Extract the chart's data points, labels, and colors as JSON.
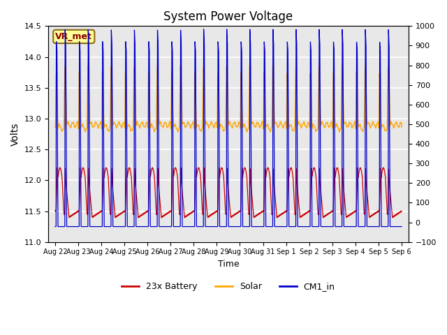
{
  "title": "System Power Voltage",
  "xlabel": "Time",
  "ylabel_left": "Volts",
  "ylim_left": [
    11.0,
    14.5
  ],
  "ylim_right": [
    -100,
    1000
  ],
  "yticks_left": [
    11.0,
    11.5,
    12.0,
    12.5,
    13.0,
    13.5,
    14.0,
    14.5
  ],
  "yticks_right": [
    -100,
    0,
    100,
    200,
    300,
    400,
    500,
    600,
    700,
    800,
    900,
    1000
  ],
  "tick_labels": [
    "Aug 22",
    "Aug 23",
    "Aug 24",
    "Aug 25",
    "Aug 26",
    "Aug 27",
    "Aug 28",
    "Aug 29",
    "Aug 30",
    "Aug 31",
    "Sep 1",
    "Sep 2",
    "Sep 3",
    "Sep 4",
    "Sep 5",
    "Sep 6"
  ],
  "annotation_text": "VR_met",
  "annotation_color": "#8B0000",
  "annotation_bg": "#FFFF99",
  "annotation_edge": "#8B6914",
  "color_battery": "#CC0000",
  "color_solar": "#FFA500",
  "color_cm1": "#0000CC",
  "legend_labels": [
    "23x Battery",
    "Solar",
    "CM1_in"
  ],
  "background_color": "#E8E8E8",
  "grid_color": "white",
  "n_days": 15,
  "n_pts_per_day": 480
}
